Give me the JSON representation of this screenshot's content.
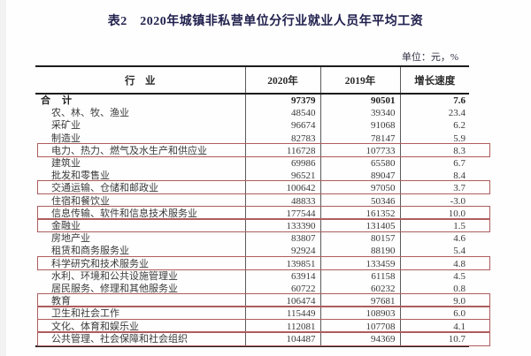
{
  "page": {
    "title": "表2　2020年城镇非私营单位分行业就业人员年平均工资",
    "unit_label": "单位：元，%"
  },
  "colors": {
    "highlight_box": "#b05c5c",
    "title_text": "#20204e",
    "table_border": "#1c1c1c"
  },
  "table": {
    "columns": [
      "行　业",
      "2020年",
      "2019年",
      "增长速度"
    ],
    "rows": [
      {
        "industry": "合　计",
        "y2020": "97379",
        "y2019": "90501",
        "growth": "7.6",
        "bold": true,
        "highlight": false
      },
      {
        "industry": "农、林、牧、渔业",
        "y2020": "48540",
        "y2019": "39340",
        "growth": "23.4",
        "bold": false,
        "highlight": false
      },
      {
        "industry": "采矿业",
        "y2020": "96674",
        "y2019": "91068",
        "growth": "6.2",
        "bold": false,
        "highlight": false
      },
      {
        "industry": "制造业",
        "y2020": "82783",
        "y2019": "78147",
        "growth": "5.9",
        "bold": false,
        "highlight": false
      },
      {
        "industry": "电力、热力、燃气及水生产和供应业",
        "y2020": "116728",
        "y2019": "107733",
        "growth": "8.3",
        "bold": false,
        "highlight": true
      },
      {
        "industry": "建筑业",
        "y2020": "69986",
        "y2019": "65580",
        "growth": "6.7",
        "bold": false,
        "highlight": false
      },
      {
        "industry": "批发和零售业",
        "y2020": "96521",
        "y2019": "89047",
        "growth": "8.4",
        "bold": false,
        "highlight": false
      },
      {
        "industry": "交通运输、仓储和邮政业",
        "y2020": "100642",
        "y2019": "97050",
        "growth": "3.7",
        "bold": false,
        "highlight": true
      },
      {
        "industry": "住宿和餐饮业",
        "y2020": "48833",
        "y2019": "50346",
        "growth": "-3.0",
        "bold": false,
        "highlight": false
      },
      {
        "industry": "信息传输、软件和信息技术服务业",
        "y2020": "177544",
        "y2019": "161352",
        "growth": "10.0",
        "bold": false,
        "highlight": true
      },
      {
        "industry": "金融业",
        "y2020": "133390",
        "y2019": "131405",
        "growth": "1.5",
        "bold": false,
        "highlight": true
      },
      {
        "industry": "房地产业",
        "y2020": "83807",
        "y2019": "80157",
        "growth": "4.6",
        "bold": false,
        "highlight": false
      },
      {
        "industry": "租赁和商务服务业",
        "y2020": "92924",
        "y2019": "88190",
        "growth": "5.4",
        "bold": false,
        "highlight": false
      },
      {
        "industry": "科学研究和技术服务业",
        "y2020": "139851",
        "y2019": "133459",
        "growth": "4.8",
        "bold": false,
        "highlight": true
      },
      {
        "industry": "水利、环境和公共设施管理业",
        "y2020": "63914",
        "y2019": "61158",
        "growth": "4.5",
        "bold": false,
        "highlight": false
      },
      {
        "industry": "居民服务、修理和其他服务业",
        "y2020": "60722",
        "y2019": "60232",
        "growth": "0.8",
        "bold": false,
        "highlight": false
      },
      {
        "industry": "教育",
        "y2020": "106474",
        "y2019": "97681",
        "growth": "9.0",
        "bold": false,
        "highlight": true
      },
      {
        "industry": "卫生和社会工作",
        "y2020": "115449",
        "y2019": "108903",
        "growth": "6.0",
        "bold": false,
        "highlight": true
      },
      {
        "industry": "文化、体育和娱乐业",
        "y2020": "112081",
        "y2019": "107708",
        "growth": "4.1",
        "bold": false,
        "highlight": true
      },
      {
        "industry": "公共管理、社会保障和社会组织",
        "y2020": "104487",
        "y2019": "94369",
        "growth": "10.7",
        "bold": false,
        "highlight": true
      }
    ]
  }
}
